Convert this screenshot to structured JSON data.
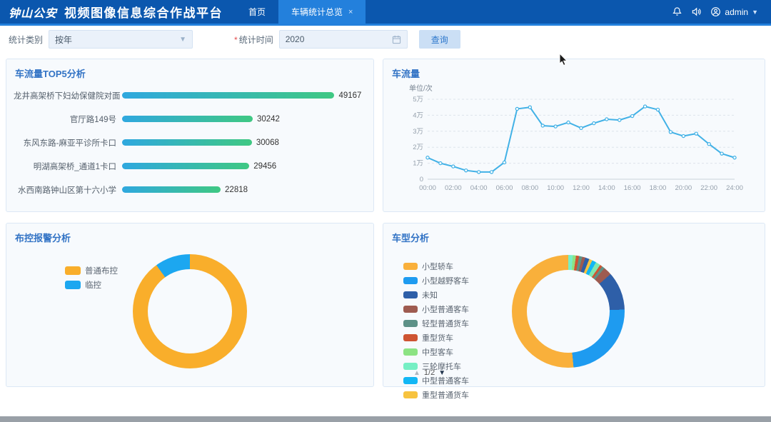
{
  "header": {
    "logo": "钟山公安",
    "title": "视频图像信息综合作战平台",
    "tabs": [
      {
        "label": "首页",
        "active": false,
        "closable": false
      },
      {
        "label": "车辆统计总览",
        "active": true,
        "closable": true
      }
    ],
    "user": "admin"
  },
  "filters": {
    "category_label": "统计类别",
    "category_value": "按年",
    "time_required_mark": "*",
    "time_label": "统计时间",
    "time_value": "2020",
    "query_button": "查询"
  },
  "chart_data": [
    {
      "type": "bar",
      "title": "车流量TOP5分析",
      "orientation": "horizontal",
      "categories": [
        "龙井高架桥下妇幼保健院对面",
        "官厅路149号",
        "东风东路-麻亚平诊所卡口",
        "明湖高架桥_通道1卡口",
        "水西南路钟山区第十六小学"
      ],
      "values": [
        49167,
        30242,
        30068,
        29456,
        22818
      ],
      "bar_gradient": [
        "#2FA8DF",
        "#3FC883"
      ],
      "xlim": [
        0,
        49167
      ]
    },
    {
      "type": "line",
      "title": "车流量",
      "unit_label": "单位/次",
      "color": "#41B1E6",
      "x_tick_labels": [
        "00:00",
        "02:00",
        "04:00",
        "06:00",
        "08:00",
        "10:00",
        "12:00",
        "14:00",
        "16:00",
        "18:00",
        "20:00",
        "22:00",
        "24:00"
      ],
      "y_tick_labels": [
        "0",
        "1万",
        "2万",
        "3万",
        "4万",
        "5万"
      ],
      "ylim_wan": [
        0,
        5
      ],
      "values_wan": [
        1.35,
        1.0,
        0.8,
        0.55,
        0.45,
        0.45,
        1.05,
        4.4,
        4.5,
        3.35,
        3.3,
        3.55,
        3.2,
        3.5,
        3.75,
        3.7,
        3.95,
        4.55,
        4.35,
        2.95,
        2.7,
        2.85,
        2.2,
        1.6,
        1.35
      ],
      "grid": "dashed"
    },
    {
      "type": "pie",
      "title": "布控报警分析",
      "legend_position": "left",
      "legend": [
        {
          "label": "普通布控",
          "color": "#F9AE2B"
        },
        {
          "label": "临控",
          "color": "#1CA7F0"
        }
      ],
      "segments": [
        {
          "color": "#F9AE2B",
          "value": 90
        },
        {
          "color": "#1CA7F0",
          "value": 10
        }
      ]
    },
    {
      "type": "pie",
      "title": "车型分析",
      "legend_position": "left",
      "pager": {
        "page": "1/2",
        "up": "▲",
        "down": "▼"
      },
      "legend": [
        {
          "label": "小型轿车",
          "color": "#F9B03B"
        },
        {
          "label": "小型越野客车",
          "color": "#1E9BF0"
        },
        {
          "label": "未知",
          "color": "#2E5FA8"
        },
        {
          "label": "小型普通客车",
          "color": "#9E5B50"
        },
        {
          "label": "轻型普通货车",
          "color": "#5D9187"
        },
        {
          "label": "重型货车",
          "color": "#CE5432"
        },
        {
          "label": "中型客车",
          "color": "#8CE383"
        },
        {
          "label": "三轮摩托车",
          "color": "#76EFC4"
        },
        {
          "label": "中型普通客车",
          "color": "#12B7F5"
        },
        {
          "label": "重型普通货车",
          "color": "#F7C33F"
        }
      ],
      "segments": [
        {
          "color": "#76EFC4",
          "value": 1.3
        },
        {
          "color": "#8CE383",
          "value": 0.9
        },
        {
          "color": "#CE5432",
          "value": 0.9
        },
        {
          "color": "#5D9187",
          "value": 0.9
        },
        {
          "color": "#9E5B50",
          "value": 0.9
        },
        {
          "color": "#2E5FA8",
          "value": 1.2
        },
        {
          "color": "#F7C33F",
          "value": 0.9
        },
        {
          "color": "#12B7F5",
          "value": 1.2
        },
        {
          "color": "#80E8B0",
          "value": 1.4
        },
        {
          "color": "#CE5432",
          "value": 0.7
        },
        {
          "color": "#5D9187",
          "value": 0.8
        },
        {
          "color": "#9E5B50",
          "value": 2.4
        },
        {
          "color": "#2E5FA8",
          "value": 11.0
        },
        {
          "color": "#1E9BF0",
          "value": 24.0
        },
        {
          "color": "#F9B03B",
          "value": 51.5
        }
      ]
    }
  ]
}
